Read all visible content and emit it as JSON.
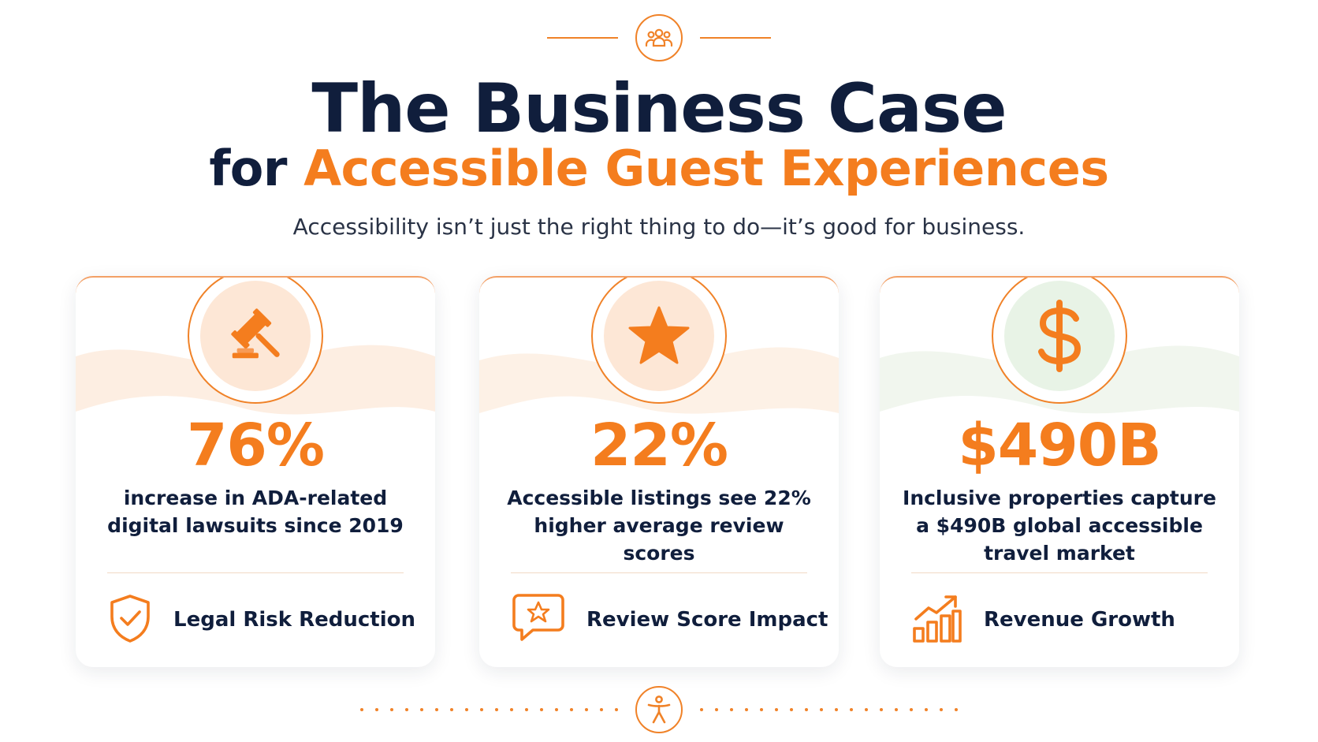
{
  "header": {
    "top_icon": "people-group-icon",
    "title": "The Business Case",
    "subtitle_prefix": "for",
    "subtitle_highlight": "Accessible Guest Experiences",
    "tagline": "Accessibility isn’t just the right thing to do—it’s good for business."
  },
  "cards": [
    {
      "icon": "gavel-icon",
      "stat": "76%",
      "description": "increase in ADA-related digital lawsuits since 2019",
      "footer_icon": "shield-check-icon",
      "footer_label": "Legal Risk Reduction"
    },
    {
      "icon": "star-icon",
      "stat": "22%",
      "description": "Accessible listings see 22% higher average review scores",
      "footer_icon": "chat-star-icon",
      "footer_label": "Review Score Impact"
    },
    {
      "icon": "dollar-icon",
      "stat": "$490B",
      "description": "Inclusive properties capture a $490B global accessible travel market",
      "footer_icon": "bar-chart-growth-icon",
      "footer_label": "Revenue Growth"
    }
  ],
  "footer": {
    "icon": "accessibility-person-icon"
  },
  "colors": {
    "navy": "#101e3c",
    "orange": "#f47d1e",
    "green_tint": "#e8f3e6"
  }
}
